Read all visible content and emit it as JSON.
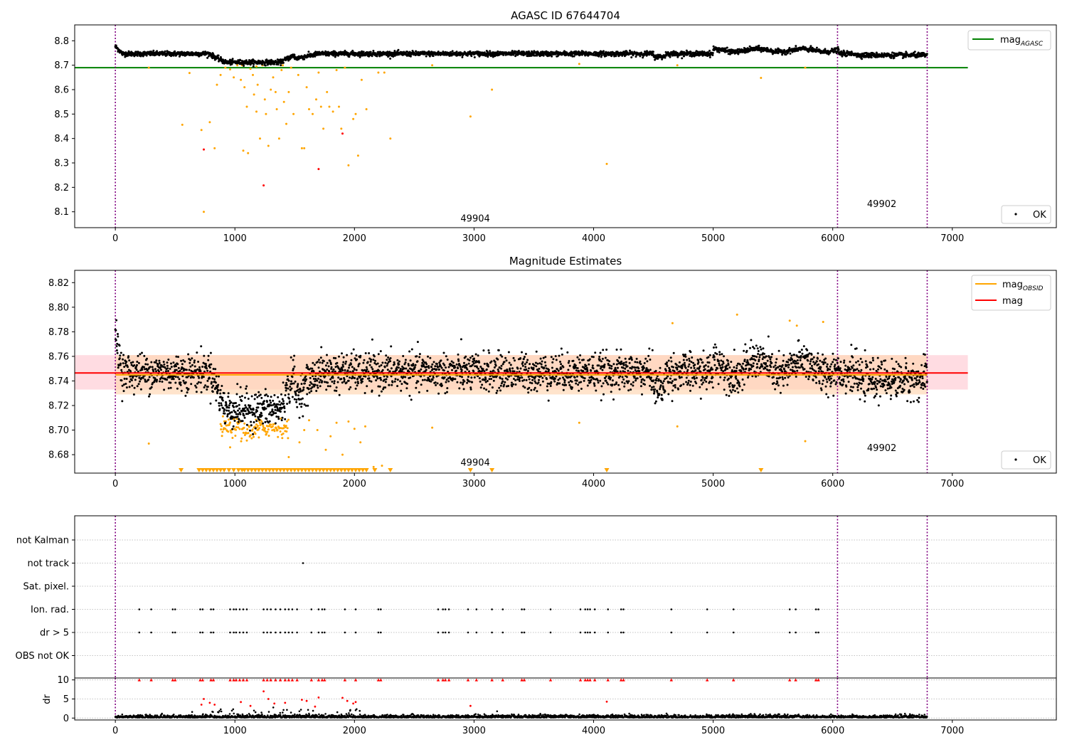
{
  "x_ticks": [
    0,
    1000,
    2000,
    3000,
    4000,
    5000,
    6000,
    7000
  ],
  "x_tick_labels": [
    "0",
    "1000",
    "2000",
    "3000",
    "4000",
    "5000",
    "6000",
    "7000"
  ],
  "colors": {
    "ok": "#000000",
    "suspect": "#ffa500",
    "bad": "#ff0000",
    "agasc_line": "#008000",
    "obsid_line": "#ffa500",
    "mag_line": "#ff0000",
    "vline": "#800080",
    "grid": "#b0b0b0",
    "mag_band": "#ffc0cb",
    "obsid_band": "#ffd5b0"
  },
  "chart_data": [
    {
      "id": "p1",
      "type": "scatter",
      "title": "AGASC ID 67644704",
      "xlim": [
        -340,
        7870
      ],
      "ylim": [
        8.035,
        8.865
      ],
      "y_ticks": [
        8.1,
        8.2,
        8.3,
        8.4,
        8.5,
        8.6,
        8.7,
        8.8
      ],
      "y_tick_labels": [
        "8.1",
        "8.2",
        "8.3",
        "8.4",
        "8.5",
        "8.6",
        "8.7",
        "8.8"
      ],
      "reference_lines": [
        {
          "label": "mag_AGASC",
          "label_main": "mag",
          "label_sub": "AGASC",
          "y": 8.69,
          "x_range": [
            -340,
            7130
          ],
          "color": "#008000"
        }
      ],
      "vlines": [
        0,
        6040,
        6790
      ],
      "obsid_labels": [
        {
          "text": "49904",
          "x": 3010,
          "y": 8.06
        },
        {
          "text": "49902",
          "x": 6410,
          "y": 8.12
        }
      ],
      "legend_top": "top-right",
      "legend_bottom": {
        "label": "OK",
        "placement": "bottom-right"
      },
      "ok_band": {
        "base": 8.745,
        "amplitude": 0.009
      },
      "suspect_points": [
        [
          560,
          8.456
        ],
        [
          620,
          8.668
        ],
        [
          720,
          8.435
        ],
        [
          740,
          8.1
        ],
        [
          790,
          8.467
        ],
        [
          830,
          8.36
        ],
        [
          850,
          8.62
        ],
        [
          880,
          8.66
        ],
        [
          920,
          8.69
        ],
        [
          960,
          8.683
        ],
        [
          990,
          8.65
        ],
        [
          1020,
          8.7
        ],
        [
          1050,
          8.64
        ],
        [
          1070,
          8.35
        ],
        [
          1080,
          8.61
        ],
        [
          1100,
          8.53
        ],
        [
          1110,
          8.34
        ],
        [
          1130,
          8.685
        ],
        [
          1150,
          8.66
        ],
        [
          1160,
          8.58
        ],
        [
          1180,
          8.51
        ],
        [
          1190,
          8.62
        ],
        [
          1210,
          8.4
        ],
        [
          1230,
          8.7
        ],
        [
          1250,
          8.56
        ],
        [
          1260,
          8.5
        ],
        [
          1280,
          8.37
        ],
        [
          1300,
          8.6
        ],
        [
          1320,
          8.65
        ],
        [
          1340,
          8.59
        ],
        [
          1350,
          8.52
        ],
        [
          1370,
          8.4
        ],
        [
          1390,
          8.68
        ],
        [
          1410,
          8.55
        ],
        [
          1430,
          8.46
        ],
        [
          1450,
          8.59
        ],
        [
          1470,
          8.69
        ],
        [
          1490,
          8.5
        ],
        [
          1530,
          8.66
        ],
        [
          1560,
          8.36
        ],
        [
          1580,
          8.36
        ],
        [
          1600,
          8.61
        ],
        [
          1620,
          8.52
        ],
        [
          1650,
          8.5
        ],
        [
          1680,
          8.56
        ],
        [
          1700,
          8.67
        ],
        [
          1720,
          8.53
        ],
        [
          1740,
          8.44
        ],
        [
          1770,
          8.59
        ],
        [
          1790,
          8.53
        ],
        [
          1820,
          8.51
        ],
        [
          1850,
          8.68
        ],
        [
          1870,
          8.53
        ],
        [
          1890,
          8.44
        ],
        [
          1920,
          8.69
        ],
        [
          1950,
          8.29
        ],
        [
          1990,
          8.48
        ],
        [
          2010,
          8.5
        ],
        [
          2030,
          8.33
        ],
        [
          2060,
          8.64
        ],
        [
          2100,
          8.52
        ],
        [
          2200,
          8.67
        ],
        [
          2250,
          8.67
        ],
        [
          2300,
          8.4
        ],
        [
          2650,
          8.7
        ],
        [
          2970,
          8.49
        ],
        [
          3150,
          8.6
        ],
        [
          3880,
          8.705
        ],
        [
          4110,
          8.296
        ],
        [
          4700,
          8.7
        ],
        [
          5400,
          8.648
        ],
        [
          5770,
          8.69
        ],
        [
          280,
          8.69
        ],
        [
          1180,
          8.695
        ],
        [
          1060,
          8.7
        ],
        [
          1400,
          8.7
        ]
      ],
      "bad_points": [
        [
          740,
          8.355
        ],
        [
          1240,
          8.208
        ],
        [
          1700,
          8.275
        ],
        [
          1900,
          8.42
        ]
      ]
    },
    {
      "id": "p2",
      "type": "scatter",
      "title": "Magnitude Estimates",
      "xlim": [
        -340,
        7870
      ],
      "ylim": [
        8.665,
        8.83
      ],
      "y_ticks": [
        8.68,
        8.7,
        8.72,
        8.74,
        8.76,
        8.78,
        8.8,
        8.82
      ],
      "y_tick_labels": [
        "8.68",
        "8.70",
        "8.72",
        "8.74",
        "8.76",
        "8.78",
        "8.80",
        "8.82"
      ],
      "reference_lines": [
        {
          "label": "mag_OBSID",
          "label_main": "mag",
          "label_sub": "OBSID",
          "y": 8.745,
          "x_range": [
            0,
            6790
          ],
          "color": "#ffa500"
        },
        {
          "label": "mag",
          "label_main": "mag",
          "label_sub": "",
          "y": 8.7465,
          "x_range": [
            -340,
            7130
          ],
          "color": "#ff0000"
        }
      ],
      "bands": [
        {
          "y_range": [
            8.733,
            8.761
          ],
          "x_range": [
            -340,
            7130
          ],
          "color": "#ffc0cb"
        },
        {
          "y_range": [
            8.729,
            8.761
          ],
          "x_range": [
            0,
            6790
          ],
          "color": "#ffd5b0"
        }
      ],
      "vlines": [
        0,
        6040,
        6790
      ],
      "obsid_labels": [
        {
          "text": "49904",
          "x": 3010,
          "y": 8.671
        },
        {
          "text": "49902",
          "x": 6410,
          "y": 8.683
        }
      ],
      "legend_top": "top-right",
      "legend_bottom": {
        "label": "OK",
        "placement": "bottom-right"
      },
      "suspect_points": [
        [
          280,
          8.689
        ],
        [
          2650,
          8.702
        ],
        [
          3880,
          8.706
        ],
        [
          4700,
          8.703
        ],
        [
          4660,
          8.787
        ],
        [
          5200,
          8.794
        ],
        [
          5640,
          8.789
        ],
        [
          5700,
          8.785
        ],
        [
          5920,
          8.788
        ],
        [
          5770,
          8.691
        ],
        [
          1620,
          8.708
        ],
        [
          1690,
          8.7
        ],
        [
          1760,
          8.684
        ],
        [
          1800,
          8.695
        ],
        [
          1850,
          8.706
        ],
        [
          1900,
          8.68
        ],
        [
          1950,
          8.707
        ],
        [
          2000,
          8.701
        ],
        [
          2050,
          8.69
        ],
        [
          2090,
          8.703
        ],
        [
          2160,
          8.67
        ],
        [
          2230,
          8.671
        ],
        [
          960,
          8.686
        ],
        [
          1200,
          8.694
        ],
        [
          1450,
          8.678
        ],
        [
          1540,
          8.69
        ],
        [
          1580,
          8.7
        ]
      ],
      "triangle_x": [
        550,
        700,
        730,
        760,
        790,
        820,
        850,
        880,
        910,
        950,
        990,
        1030,
        1060,
        1080,
        1110,
        1140,
        1170,
        1200,
        1230,
        1260,
        1290,
        1320,
        1350,
        1380,
        1410,
        1440,
        1470,
        1500,
        1530,
        1560,
        1590,
        1620,
        1650,
        1680,
        1710,
        1740,
        1770,
        1800,
        1830,
        1860,
        1890,
        1920,
        1950,
        1980,
        2010,
        2040,
        2070,
        2100,
        2170,
        2300,
        2970,
        3150,
        4110,
        5400
      ]
    },
    {
      "id": "p3",
      "type": "scatter",
      "title": "",
      "xlim": [
        -340,
        7870
      ],
      "categories": [
        "not Kalman",
        "not track",
        "Sat. pixel.",
        "Ion. rad.",
        "dr > 5",
        "OBS not OK"
      ],
      "vlines": [
        0,
        6040,
        6790
      ],
      "flag_x": [
        200,
        300,
        480,
        500,
        710,
        730,
        800,
        820,
        960,
        990,
        1010,
        1040,
        1070,
        1100,
        1240,
        1270,
        1300,
        1340,
        1380,
        1420,
        1450,
        1480,
        1520,
        1640,
        1700,
        1730,
        1750,
        1920,
        2010,
        2200,
        2220,
        2700,
        2740,
        2760,
        2790,
        2950,
        3020,
        3150,
        3240,
        3400,
        3420,
        3640,
        3890,
        3930,
        3950,
        3970,
        4010,
        4120,
        4230,
        4250,
        4650,
        4950,
        5170,
        5640,
        5690,
        5860,
        5880
      ],
      "not_track_x": [
        1570
      ]
    },
    {
      "id": "p4",
      "type": "scatter",
      "title": "",
      "xlim": [
        -340,
        7870
      ],
      "ylim": [
        -0.5,
        10.5
      ],
      "ylabel": "dr",
      "y_ticks": [
        0,
        5,
        10
      ],
      "y_tick_labels": [
        "0",
        "5",
        "10"
      ],
      "vlines": [
        0,
        6040,
        6790
      ],
      "dr_points": [
        [
          740,
          5.0
        ],
        [
          790,
          4.0
        ],
        [
          830,
          3.5
        ],
        [
          1240,
          7.0
        ],
        [
          1280,
          5.0
        ],
        [
          1420,
          4.0
        ],
        [
          1560,
          4.8
        ],
        [
          1600,
          4.5
        ],
        [
          1670,
          3.0
        ],
        [
          1700,
          5.4
        ],
        [
          1900,
          5.3
        ],
        [
          1940,
          4.5
        ],
        [
          1990,
          3.8
        ],
        [
          2010,
          4.2
        ],
        [
          2970,
          3.2
        ],
        [
          4110,
          4.3
        ],
        [
          1050,
          4.2
        ],
        [
          1130,
          3.2
        ],
        [
          1330,
          3.8
        ],
        [
          720,
          3.5
        ]
      ],
      "clipped_x": [
        200,
        300,
        480,
        500,
        710,
        730,
        800,
        820,
        960,
        990,
        1010,
        1040,
        1070,
        1100,
        1240,
        1270,
        1300,
        1340,
        1380,
        1420,
        1450,
        1480,
        1520,
        1640,
        1700,
        1730,
        1750,
        1920,
        2010,
        2200,
        2220,
        2700,
        2740,
        2760,
        2790,
        2950,
        3020,
        3150,
        3240,
        3400,
        3420,
        3640,
        3890,
        3930,
        3950,
        3970,
        4010,
        4120,
        4230,
        4250,
        4650,
        4950,
        5170,
        5640,
        5690,
        5860,
        5880
      ]
    }
  ]
}
